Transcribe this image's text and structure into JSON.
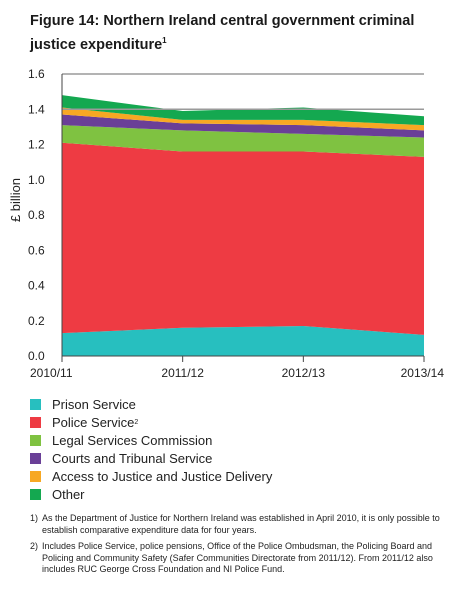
{
  "title": "Figure 14: Northern Ireland central government criminal justice expenditure",
  "title_note_mark": "1",
  "chart_data": {
    "type": "area",
    "stacked": true,
    "title": "Figure 14: Northern Ireland central government criminal justice expenditure",
    "xlabel": "",
    "ylabel": "£ billion",
    "categories": [
      "2010/11",
      "2011/12",
      "2012/13",
      "2013/14"
    ],
    "ylim": [
      0,
      1.6
    ],
    "yticks": [
      "0.0",
      "0.2",
      "0.4",
      "0.6",
      "0.8",
      "1.0",
      "1.2",
      "1.4",
      "1.6"
    ],
    "ytick_values": [
      0,
      0.2,
      0.4,
      0.6,
      0.8,
      1.0,
      1.2,
      1.4,
      1.6
    ],
    "grid": "horizontal at 1.4 and 1.6",
    "legend": "bottom",
    "series": [
      {
        "name": "Prison Service",
        "color": "#27bfbf",
        "values": [
          0.13,
          0.16,
          0.17,
          0.12
        ]
      },
      {
        "name": "Police Service",
        "color": "#ee3b43",
        "values": [
          1.08,
          1.0,
          0.99,
          1.01
        ]
      },
      {
        "name": "Legal Services Commission",
        "color": "#7fc241",
        "values": [
          0.1,
          0.12,
          0.1,
          0.11
        ]
      },
      {
        "name": "Courts and Tribunal Service",
        "color": "#6a3f97",
        "values": [
          0.06,
          0.04,
          0.05,
          0.04
        ]
      },
      {
        "name": "Access to Justice and Justice Delivery",
        "color": "#f7a823",
        "values": [
          0.04,
          0.02,
          0.03,
          0.03
        ]
      },
      {
        "name": "Other",
        "color": "#14a850",
        "values": [
          0.07,
          0.05,
          0.07,
          0.05
        ]
      }
    ]
  },
  "legend_note_marks": [
    "",
    "2",
    "",
    "",
    "",
    ""
  ],
  "notes": [
    {
      "mark": "1)",
      "text": "As the Department of Justice for Northern Ireland was established in April 2010, it is only possible to establish comparative expenditure data for four years."
    },
    {
      "mark": "2)",
      "text": "Includes Police Service, police pensions, Office of the Police Ombudsman, the Policing Board and Policing and Community Safety (Safer Communities Directorate from 2011/12). From 2011/12 also includes RUC George Cross Foundation and NI Police Fund."
    }
  ]
}
